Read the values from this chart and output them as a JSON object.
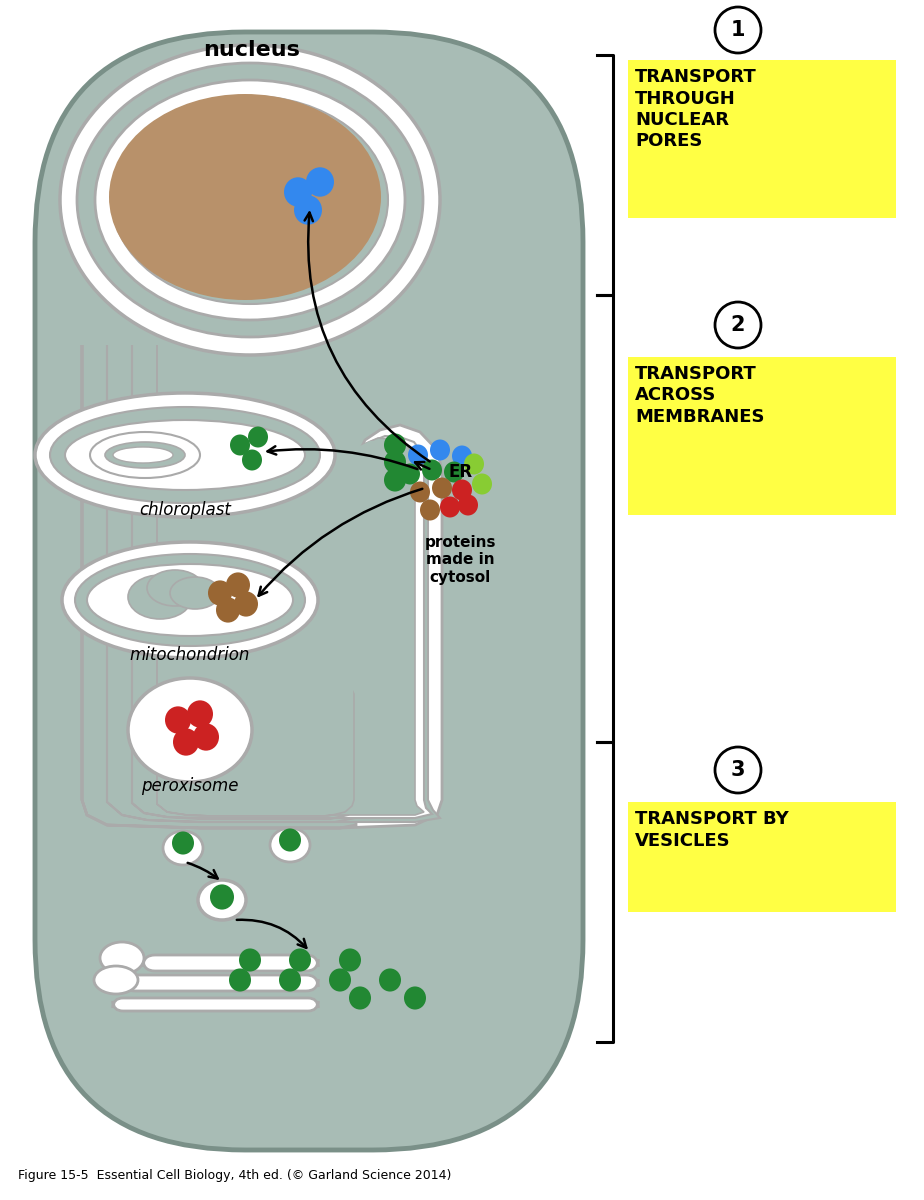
{
  "bg_color": "#ffffff",
  "cell_color": "#a8bcb5",
  "cell_edge": "#7a9088",
  "white": "#ffffff",
  "mem_edge": "#aaaaaa",
  "nucleus_brown": "#b8916a",
  "yellow_box": "#ffff44",
  "dot_blue": "#3388ee",
  "dot_green": "#228833",
  "dot_light_green": "#88cc33",
  "dot_brown": "#996633",
  "dot_red": "#cc2222",
  "black": "#111111",
  "label_nucleus": "nucleus",
  "label_chloroplast": "chloroplast",
  "label_mito": "mitochondrion",
  "label_perox": "peroxisome",
  "label_er": "ER",
  "label_proteins": "proteins\nmade in\ncytosol",
  "box1_text": "TRANSPORT\nTHROUGH\nNUCLEAR\nPORES",
  "box2_text": "TRANSPORT\nACROSS\nMEMBRANES",
  "box3_text": "TRANSPORT BY\nVESICLES",
  "caption": "Figure 15-5  Essential Cell Biology, 4th ed. (© Garland Science 2014)",
  "num1": "1",
  "num2": "2",
  "num3": "3"
}
